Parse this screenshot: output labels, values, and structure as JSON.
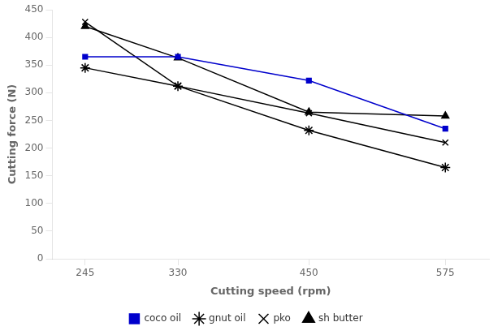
{
  "chart_data": {
    "type": "line",
    "xlabel": "Cutting speed (rpm)",
    "ylabel": "Cutting force (N)",
    "x": [
      245,
      330,
      450,
      575
    ],
    "series": [
      {
        "name": "coco oil",
        "color": "#0000cc",
        "marker": "square",
        "values": [
          365,
          365,
          322,
          235
        ]
      },
      {
        "name": "gnut oil",
        "color": "#000000",
        "marker": "star",
        "values": [
          345,
          312,
          232,
          165
        ]
      },
      {
        "name": "pko",
        "color": "#000000",
        "marker": "x",
        "values": [
          428,
          312,
          263,
          210
        ]
      },
      {
        "name": "sh butter",
        "color": "#000000",
        "marker": "triangle",
        "values": [
          420,
          363,
          265,
          258
        ]
      }
    ],
    "xlim": [
      215,
      615
    ],
    "xticks": [
      245,
      330,
      450,
      575
    ],
    "ylim": [
      0,
      450
    ],
    "yticks": [
      0,
      50,
      100,
      150,
      200,
      250,
      300,
      350,
      400,
      450
    ],
    "grid": false,
    "legend": "bottom"
  }
}
